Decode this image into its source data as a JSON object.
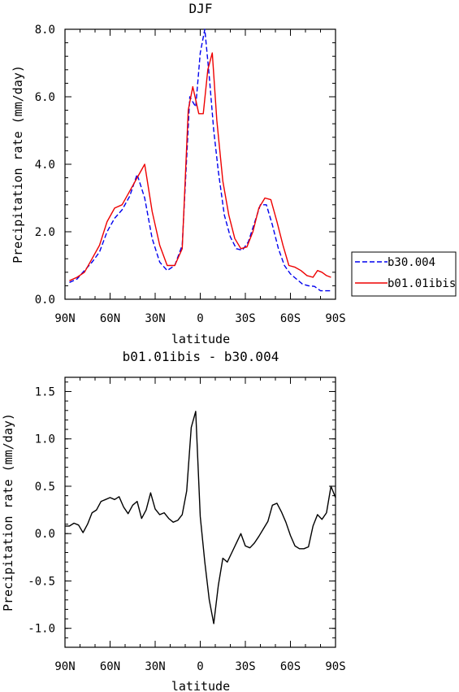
{
  "chart_data": [
    {
      "type": "line",
      "title": "DJF",
      "xlabel": "latitude",
      "ylabel": "Precipitation rate (mm/day)",
      "xlim": [
        90,
        -90
      ],
      "ylim": [
        0,
        8
      ],
      "x_note": "latitude in degrees, positive = N, negative = S",
      "xticks": [
        90,
        60,
        30,
        0,
        -30,
        -60,
        -90
      ],
      "xtick_labels": [
        "90N",
        "60N",
        "30N",
        "0",
        "30S",
        "60S",
        "90S"
      ],
      "yticks": [
        0,
        2,
        4,
        6,
        8
      ],
      "ytick_labels": [
        "0.0",
        "2.0",
        "4.0",
        "6.0",
        "8.0"
      ],
      "legend_position": "right, outside plot, bottom",
      "grid": false,
      "series": [
        {
          "name": "b30.004",
          "color": "#0000ee",
          "style": "dashed",
          "x": [
            87,
            82,
            77,
            72,
            67,
            62,
            57,
            52,
            47,
            42,
            37,
            32,
            27,
            22,
            17,
            12,
            7,
            3,
            0,
            -3,
            -6,
            -9,
            -12,
            -16,
            -20,
            -24,
            -28,
            -32,
            -36,
            -40,
            -44,
            -48,
            -52,
            -56,
            -60,
            -64,
            -68,
            -72,
            -76,
            -80,
            -84,
            -87
          ],
          "values": [
            0.5,
            0.6,
            0.85,
            1.1,
            1.4,
            2.0,
            2.4,
            2.65,
            3.05,
            3.7,
            3.0,
            1.8,
            1.1,
            0.85,
            1.0,
            1.6,
            6.0,
            5.7,
            7.3,
            8.0,
            6.6,
            5.0,
            3.8,
            2.5,
            1.85,
            1.5,
            1.45,
            1.7,
            2.25,
            2.8,
            2.8,
            2.2,
            1.5,
            1.0,
            0.75,
            0.6,
            0.45,
            0.4,
            0.38,
            0.25,
            0.25,
            0.25
          ]
        },
        {
          "name": "b01.01ibis",
          "color": "#ee0000",
          "style": "solid",
          "x": [
            87,
            82,
            77,
            72,
            67,
            62,
            57,
            52,
            47,
            42,
            37,
            32,
            27,
            22,
            17,
            12,
            8,
            5,
            1,
            -2,
            -5,
            -8,
            -11,
            -15,
            -19,
            -23,
            -27,
            -31,
            -35,
            -39,
            -43,
            -47,
            -51,
            -55,
            -59,
            -63,
            -67,
            -71,
            -75,
            -78,
            -81,
            -84,
            -87
          ],
          "values": [
            0.55,
            0.65,
            0.8,
            1.2,
            1.6,
            2.3,
            2.7,
            2.8,
            3.2,
            3.6,
            4.0,
            2.6,
            1.6,
            1.0,
            1.0,
            1.5,
            5.6,
            6.3,
            5.5,
            5.5,
            6.8,
            7.3,
            5.3,
            3.5,
            2.5,
            1.8,
            1.5,
            1.55,
            2.0,
            2.7,
            3.0,
            2.95,
            2.3,
            1.6,
            1.0,
            0.95,
            0.85,
            0.7,
            0.65,
            0.85,
            0.8,
            0.7,
            0.65
          ]
        }
      ]
    },
    {
      "type": "line",
      "title": "b01.01ibis - b30.004",
      "xlabel": "latitude",
      "ylabel": "Precipitation rate (mm/day)",
      "xlim": [
        90,
        -90
      ],
      "ylim": [
        -1.2,
        1.65
      ],
      "xticks": [
        90,
        60,
        30,
        0,
        -30,
        -60,
        -90
      ],
      "xtick_labels": [
        "90N",
        "60N",
        "30N",
        "0",
        "30S",
        "60S",
        "90S"
      ],
      "yticks": [
        -1.0,
        -0.5,
        0.0,
        0.5,
        1.0,
        1.5
      ],
      "ytick_labels": [
        "-1.0",
        "-0.5",
        "0.0",
        "0.5",
        "1.0",
        "1.5"
      ],
      "grid": false,
      "series": [
        {
          "color": "#000000",
          "style": "solid",
          "x": [
            90,
            87,
            84,
            81,
            78,
            75,
            72,
            69,
            66,
            63,
            60,
            57,
            54,
            51,
            48,
            45,
            42,
            39,
            36,
            33,
            30,
            27,
            24,
            21,
            18,
            15,
            12,
            9,
            6,
            3,
            0,
            -3,
            -6,
            -9,
            -12,
            -15,
            -18,
            -21,
            -24,
            -27,
            -30,
            -33,
            -36,
            -39,
            -42,
            -45,
            -48,
            -51,
            -54,
            -57,
            -60,
            -63,
            -66,
            -69,
            -72,
            -75,
            -78,
            -81,
            -84,
            -87,
            -90
          ],
          "values": [
            0.08,
            0.08,
            0.11,
            0.09,
            0.01,
            0.1,
            0.22,
            0.25,
            0.34,
            0.36,
            0.38,
            0.36,
            0.39,
            0.28,
            0.21,
            0.3,
            0.34,
            0.16,
            0.25,
            0.43,
            0.26,
            0.2,
            0.22,
            0.16,
            0.12,
            0.14,
            0.2,
            0.45,
            1.12,
            1.29,
            0.18,
            -0.3,
            -0.7,
            -0.95,
            -0.55,
            -0.26,
            -0.3,
            -0.2,
            -0.1,
            0.0,
            -0.13,
            -0.15,
            -0.1,
            -0.03,
            0.05,
            0.13,
            0.3,
            0.32,
            0.23,
            0.12,
            -0.02,
            -0.13,
            -0.16,
            -0.16,
            -0.14,
            0.08,
            0.2,
            0.15,
            0.22,
            0.5,
            0.38
          ]
        }
      ]
    }
  ]
}
